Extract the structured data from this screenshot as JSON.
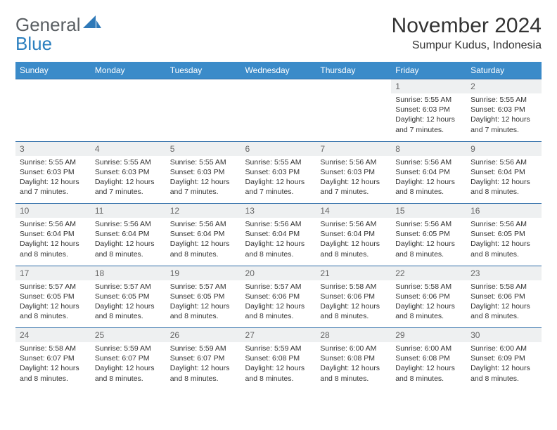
{
  "brand": {
    "text1": "General",
    "text2": "Blue",
    "logo_fill": "#2f79b8"
  },
  "header": {
    "month_title": "November 2024",
    "location": "Sumpur Kudus, Indonesia"
  },
  "table": {
    "header_bg": "#3b8bc9",
    "header_fg": "#ffffff",
    "daynum_bg": "#eef0f1",
    "border_color": "#2e6da8",
    "columns": [
      "Sunday",
      "Monday",
      "Tuesday",
      "Wednesday",
      "Thursday",
      "Friday",
      "Saturday"
    ]
  },
  "weeks": [
    [
      null,
      null,
      null,
      null,
      null,
      {
        "n": "1",
        "sr": "Sunrise: 5:55 AM",
        "ss": "Sunset: 6:03 PM",
        "dl": "Daylight: 12 hours and 7 minutes."
      },
      {
        "n": "2",
        "sr": "Sunrise: 5:55 AM",
        "ss": "Sunset: 6:03 PM",
        "dl": "Daylight: 12 hours and 7 minutes."
      }
    ],
    [
      {
        "n": "3",
        "sr": "Sunrise: 5:55 AM",
        "ss": "Sunset: 6:03 PM",
        "dl": "Daylight: 12 hours and 7 minutes."
      },
      {
        "n": "4",
        "sr": "Sunrise: 5:55 AM",
        "ss": "Sunset: 6:03 PM",
        "dl": "Daylight: 12 hours and 7 minutes."
      },
      {
        "n": "5",
        "sr": "Sunrise: 5:55 AM",
        "ss": "Sunset: 6:03 PM",
        "dl": "Daylight: 12 hours and 7 minutes."
      },
      {
        "n": "6",
        "sr": "Sunrise: 5:55 AM",
        "ss": "Sunset: 6:03 PM",
        "dl": "Daylight: 12 hours and 7 minutes."
      },
      {
        "n": "7",
        "sr": "Sunrise: 5:56 AM",
        "ss": "Sunset: 6:03 PM",
        "dl": "Daylight: 12 hours and 7 minutes."
      },
      {
        "n": "8",
        "sr": "Sunrise: 5:56 AM",
        "ss": "Sunset: 6:04 PM",
        "dl": "Daylight: 12 hours and 8 minutes."
      },
      {
        "n": "9",
        "sr": "Sunrise: 5:56 AM",
        "ss": "Sunset: 6:04 PM",
        "dl": "Daylight: 12 hours and 8 minutes."
      }
    ],
    [
      {
        "n": "10",
        "sr": "Sunrise: 5:56 AM",
        "ss": "Sunset: 6:04 PM",
        "dl": "Daylight: 12 hours and 8 minutes."
      },
      {
        "n": "11",
        "sr": "Sunrise: 5:56 AM",
        "ss": "Sunset: 6:04 PM",
        "dl": "Daylight: 12 hours and 8 minutes."
      },
      {
        "n": "12",
        "sr": "Sunrise: 5:56 AM",
        "ss": "Sunset: 6:04 PM",
        "dl": "Daylight: 12 hours and 8 minutes."
      },
      {
        "n": "13",
        "sr": "Sunrise: 5:56 AM",
        "ss": "Sunset: 6:04 PM",
        "dl": "Daylight: 12 hours and 8 minutes."
      },
      {
        "n": "14",
        "sr": "Sunrise: 5:56 AM",
        "ss": "Sunset: 6:04 PM",
        "dl": "Daylight: 12 hours and 8 minutes."
      },
      {
        "n": "15",
        "sr": "Sunrise: 5:56 AM",
        "ss": "Sunset: 6:05 PM",
        "dl": "Daylight: 12 hours and 8 minutes."
      },
      {
        "n": "16",
        "sr": "Sunrise: 5:56 AM",
        "ss": "Sunset: 6:05 PM",
        "dl": "Daylight: 12 hours and 8 minutes."
      }
    ],
    [
      {
        "n": "17",
        "sr": "Sunrise: 5:57 AM",
        "ss": "Sunset: 6:05 PM",
        "dl": "Daylight: 12 hours and 8 minutes."
      },
      {
        "n": "18",
        "sr": "Sunrise: 5:57 AM",
        "ss": "Sunset: 6:05 PM",
        "dl": "Daylight: 12 hours and 8 minutes."
      },
      {
        "n": "19",
        "sr": "Sunrise: 5:57 AM",
        "ss": "Sunset: 6:05 PM",
        "dl": "Daylight: 12 hours and 8 minutes."
      },
      {
        "n": "20",
        "sr": "Sunrise: 5:57 AM",
        "ss": "Sunset: 6:06 PM",
        "dl": "Daylight: 12 hours and 8 minutes."
      },
      {
        "n": "21",
        "sr": "Sunrise: 5:58 AM",
        "ss": "Sunset: 6:06 PM",
        "dl": "Daylight: 12 hours and 8 minutes."
      },
      {
        "n": "22",
        "sr": "Sunrise: 5:58 AM",
        "ss": "Sunset: 6:06 PM",
        "dl": "Daylight: 12 hours and 8 minutes."
      },
      {
        "n": "23",
        "sr": "Sunrise: 5:58 AM",
        "ss": "Sunset: 6:06 PM",
        "dl": "Daylight: 12 hours and 8 minutes."
      }
    ],
    [
      {
        "n": "24",
        "sr": "Sunrise: 5:58 AM",
        "ss": "Sunset: 6:07 PM",
        "dl": "Daylight: 12 hours and 8 minutes."
      },
      {
        "n": "25",
        "sr": "Sunrise: 5:59 AM",
        "ss": "Sunset: 6:07 PM",
        "dl": "Daylight: 12 hours and 8 minutes."
      },
      {
        "n": "26",
        "sr": "Sunrise: 5:59 AM",
        "ss": "Sunset: 6:07 PM",
        "dl": "Daylight: 12 hours and 8 minutes."
      },
      {
        "n": "27",
        "sr": "Sunrise: 5:59 AM",
        "ss": "Sunset: 6:08 PM",
        "dl": "Daylight: 12 hours and 8 minutes."
      },
      {
        "n": "28",
        "sr": "Sunrise: 6:00 AM",
        "ss": "Sunset: 6:08 PM",
        "dl": "Daylight: 12 hours and 8 minutes."
      },
      {
        "n": "29",
        "sr": "Sunrise: 6:00 AM",
        "ss": "Sunset: 6:08 PM",
        "dl": "Daylight: 12 hours and 8 minutes."
      },
      {
        "n": "30",
        "sr": "Sunrise: 6:00 AM",
        "ss": "Sunset: 6:09 PM",
        "dl": "Daylight: 12 hours and 8 minutes."
      }
    ]
  ]
}
